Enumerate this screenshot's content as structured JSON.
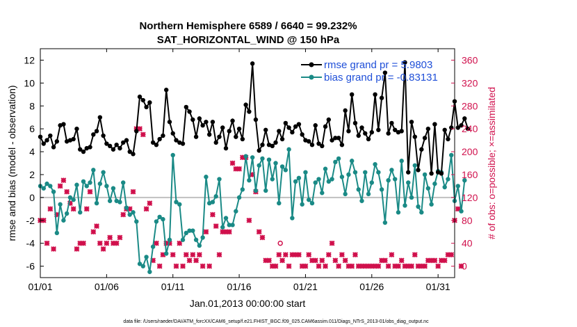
{
  "chart_data": {
    "type": "line",
    "title": "Northern Hemisphere 6589 / 6640 = 99.232%",
    "subtitle": "SAT_HORIZONTAL_WIND @ 150 hPa",
    "xlabel": "Jan.01,2013 00:00:00 start",
    "ylabel": "rmse and bias (model - observation)",
    "ylabel_right": "# of obs: o=possible; ×=assimilated",
    "footnote": "data file: /Users/raeder/DAI/ATM_forcXX/CAM6_setup/f.e21.FHIST_BGC.f09_025.CAM6assim.011/Diags_NTrS_2013-01/obs_diag_output.nc",
    "x_ticks": [
      "01/01",
      "01/06",
      "01/11",
      "01/16",
      "01/21",
      "01/26",
      "01/31"
    ],
    "x_tick_days": [
      1,
      6,
      11,
      16,
      21,
      26,
      31
    ],
    "xlim": [
      1,
      32.25
    ],
    "ylim": [
      -7,
      13
    ],
    "y_ticks": [
      "-6",
      "-4",
      "-2",
      "0",
      "2",
      "4",
      "6",
      "8",
      "10",
      "12"
    ],
    "y2lim": [
      -20,
      380
    ],
    "y2_ticks": [
      "0",
      "40",
      "80",
      "120",
      "160",
      "200",
      "240",
      "280",
      "320",
      "360"
    ],
    "x_start": 1,
    "x_step": 0.25,
    "legend": [
      {
        "name": "rmse grand pr = 5.9803",
        "color": "#000000"
      },
      {
        "name": "bias grand pr = -0.83131",
        "color": "#1a8a86"
      }
    ],
    "colors": {
      "rmse": "#000000",
      "bias": "#1a8a86",
      "obs": "#d0104c",
      "zero": "#c0c0c0"
    },
    "series": [
      {
        "name": "rmse",
        "values": [
          5.3,
          4.7,
          5.0,
          5.4,
          4.4,
          4.9,
          6.3,
          6.4,
          4.9,
          5.0,
          5.1,
          6.0,
          4.2,
          4.0,
          4.3,
          4.4,
          5.5,
          5.8,
          7.0,
          5.4,
          4.7,
          4.5,
          4.2,
          4.6,
          4.3,
          4.8,
          5.0,
          4.0,
          3.8,
          5.8,
          8.8,
          8.5,
          7.9,
          8.3,
          4.8,
          4.6,
          5.1,
          5.4,
          9.4,
          6.6,
          5.6,
          5.0,
          4.8,
          4.7,
          7.9,
          7.5,
          6.8,
          5.3,
          6.9,
          6.3,
          6.6,
          5.5,
          6.6,
          4.8,
          5.3,
          6.1,
          4.3,
          5.8,
          6.7,
          5.3,
          6.0,
          5.1,
          8.1,
          7.5,
          11.7,
          6.8,
          4.1,
          4.6,
          5.9,
          4.6,
          4.5,
          4.8,
          5.8,
          5.1,
          6.5,
          6.1,
          5.7,
          6.2,
          6.4,
          5.5,
          5.0,
          4.9,
          4.6,
          6.3,
          4.7,
          4.5,
          6.2,
          6.8,
          5.0,
          5.2,
          5.2,
          4.6,
          7.6,
          5.8,
          9.0,
          6.5,
          5.4,
          6.1,
          5.6,
          5.1,
          5.7,
          9.0,
          5.9,
          8.7,
          10.9,
          5.6,
          6.5,
          5.9,
          5.7,
          5.8,
          11.8,
          2.2,
          6.6,
          5.3,
          2.4,
          4.2,
          5.2,
          6.0,
          2.1,
          6.4,
          2.2,
          2.1,
          5.9,
          5.1,
          6.1,
          8.4,
          6.1,
          6.3,
          6.9,
          6.0
        ]
      },
      {
        "name": "bias",
        "values": [
          1.0,
          0.8,
          1.2,
          1.0,
          0.5,
          -3.1,
          -0.6,
          -2.0,
          -1.4,
          0.0,
          -0.2,
          1.1,
          -1.3,
          1.4,
          1.0,
          1.3,
          2.4,
          -0.5,
          1.2,
          2.2,
          1.0,
          -0.3,
          0.8,
          -0.3,
          -0.4,
          1.3,
          -0.9,
          -1.5,
          -1.3,
          -2.1,
          -5.8,
          -6.0,
          -5.2,
          -6.5,
          -4.3,
          -2.1,
          -1.7,
          -1.9,
          -4.9,
          -3.7,
          3.7,
          -0.4,
          -0.6,
          -3.7,
          -3.1,
          -2.9,
          -2.9,
          -3.7,
          -4.2,
          -3.5,
          1.8,
          -0.5,
          -0.4,
          0.1,
          1.6,
          -2.6,
          -1.8,
          -2.4,
          -2.4,
          -1.2,
          0.0,
          0.7,
          3.6,
          1.5,
          3.5,
          0.6,
          2.8,
          3.4,
          0.6,
          3.3,
          1.6,
          3.0,
          -0.5,
          2.7,
          2.4,
          4.2,
          -1.8,
          1.4,
          1.7,
          -0.6,
          2.2,
          -0.2,
          -0.5,
          1.3,
          1.6,
          0.4,
          2.5,
          1.4,
          1.6,
          3.1,
          3.4,
          1.8,
          0.3,
          2.0,
          3.2,
          2.2,
          0.7,
          -0.3,
          2.2,
          0.3,
          1.3,
          2.9,
          2.2,
          0.7,
          -2.2,
          1.5,
          2.4,
          1.6,
          -1.3,
          3.2,
          -0.7,
          1.3,
          0.0,
          2.8,
          -0.8,
          -1.3,
          2.0,
          0.8,
          -0.6,
          1.2,
          2.3,
          2.2,
          0.9,
          1.6,
          3.7,
          -0.3,
          1.0,
          -1.2,
          1.5
        ]
      },
      {
        "name": "obs_assimilated",
        "values": [
          80,
          80,
          40,
          100,
          30,
          90,
          140,
          150,
          130,
          110,
          100,
          30,
          40,
          40,
          100,
          130,
          60,
          70,
          40,
          30,
          40,
          50,
          40,
          40,
          50,
          90,
          100,
          100,
          130,
          240,
          240,
          230,
          100,
          110,
          10,
          40,
          0,
          20,
          40,
          40,
          20,
          0,
          40,
          0,
          20,
          10,
          20,
          10,
          20,
          0,
          60,
          0,
          90,
          70,
          20,
          60,
          60,
          60,
          180,
          170,
          170,
          190,
          190,
          80,
          160,
          130,
          60,
          50,
          10,
          10,
          0,
          0,
          20,
          10,
          20,
          0,
          20,
          20,
          20,
          0,
          0,
          20,
          10,
          10,
          0,
          10,
          0,
          20,
          40,
          10,
          0,
          20,
          10,
          0,
          0,
          20,
          0,
          0,
          0,
          0,
          0,
          0,
          0,
          10,
          10,
          0,
          20,
          0,
          0,
          10,
          0,
          0,
          0,
          20,
          0,
          0,
          0,
          10,
          10,
          10,
          0,
          10,
          10,
          20,
          20,
          80,
          100,
          0
        ]
      },
      {
        "name": "obs_possible",
        "values": [
          80,
          80,
          40,
          100,
          30,
          90,
          140,
          150,
          130,
          110,
          100,
          30,
          40,
          40,
          100,
          130,
          60,
          70,
          40,
          30,
          40,
          50,
          40,
          40,
          50,
          90,
          100,
          100,
          130,
          240,
          240,
          230,
          100,
          110,
          10,
          40,
          0,
          20,
          40,
          40,
          20,
          0,
          40,
          0,
          20,
          10,
          20,
          10,
          20,
          0,
          60,
          0,
          90,
          70,
          20,
          60,
          60,
          60,
          180,
          170,
          170,
          190,
          190,
          80,
          160,
          130,
          60,
          50,
          10,
          10,
          0,
          0,
          20,
          10,
          20,
          0,
          20,
          20,
          20,
          0,
          0,
          20,
          10,
          10,
          0,
          10,
          0,
          20,
          40,
          10,
          0,
          20,
          10,
          0,
          0,
          20,
          0,
          0,
          0,
          0,
          0,
          0,
          0,
          10,
          10,
          0,
          20,
          0,
          0,
          10,
          0,
          0,
          0,
          20,
          0,
          0,
          0,
          10,
          10,
          10,
          0,
          10,
          10,
          20,
          20,
          80,
          100,
          0
        ]
      }
    ],
    "annotations": [
      {
        "text": "o",
        "x": 19.1,
        "y2": 40,
        "note": "possible-only observation marker"
      }
    ]
  }
}
